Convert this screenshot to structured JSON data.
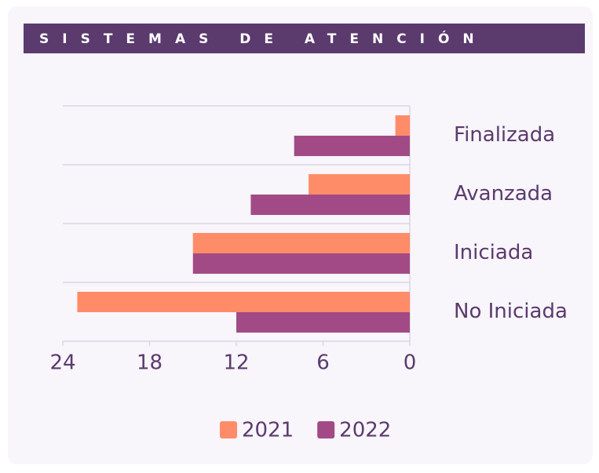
{
  "chart_data": {
    "type": "barh",
    "title": "SISTEMAS DE ATENCIÓN",
    "categories": [
      "Finalizada",
      "Avanzada",
      "Iniciada",
      "No Iniciada"
    ],
    "series": [
      {
        "name": "2021",
        "color": "#ff8c69",
        "values": [
          1,
          7,
          15,
          23
        ]
      },
      {
        "name": "2022",
        "color": "#a24a86",
        "values": [
          8,
          11,
          15,
          12
        ]
      }
    ],
    "xlim": [
      0,
      24
    ],
    "xticks": [
      0,
      6,
      12,
      18,
      24
    ],
    "x_reversed": true,
    "legend": "bottom"
  }
}
